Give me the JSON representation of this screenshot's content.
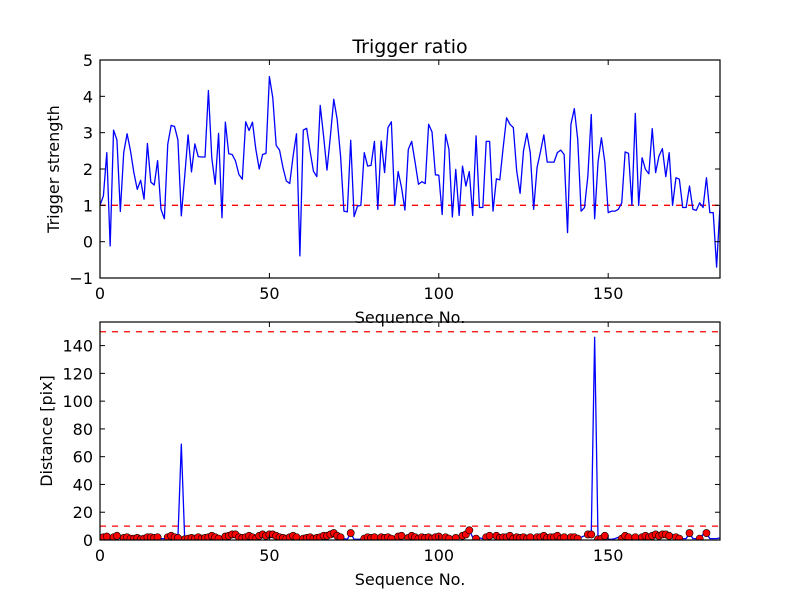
{
  "chart_data": [
    {
      "type": "line",
      "title": "Trigger ratio",
      "xlabel": "Sequence No.",
      "ylabel": "Trigger strength",
      "xlim": [
        0,
        183
      ],
      "ylim": [
        -1,
        5
      ],
      "xticks": [
        0,
        50,
        100,
        150
      ],
      "yticks": [
        -1,
        0,
        1,
        2,
        3,
        4,
        5
      ],
      "line_color": "#0000ff",
      "threshold": {
        "value": 1,
        "color": "#ff0000",
        "style": "dashed"
      },
      "y": [
        1.0,
        1.26,
        2.45,
        -0.12,
        3.07,
        2.8,
        0.83,
        2.45,
        2.97,
        2.5,
        1.9,
        1.44,
        1.69,
        1.17,
        2.7,
        1.64,
        1.56,
        2.23,
        0.89,
        0.63,
        2.68,
        3.2,
        3.17,
        2.8,
        0.71,
        1.8,
        2.94,
        1.92,
        2.69,
        2.34,
        2.33,
        2.33,
        4.16,
        2.3,
        1.58,
        2.98,
        0.66,
        3.29,
        2.42,
        2.4,
        2.22,
        1.85,
        1.72,
        3.3,
        3.06,
        3.29,
        2.54,
        2.0,
        2.4,
        2.43,
        4.54,
        3.96,
        2.65,
        2.52,
        2.04,
        1.67,
        1.6,
        2.36,
        2.97,
        -0.39,
        3.07,
        3.12,
        2.5,
        1.94,
        1.79,
        3.75,
        2.9,
        1.97,
        2.9,
        3.92,
        3.37,
        2.36,
        0.84,
        0.82,
        2.79,
        0.69,
        0.98,
        1.0,
        2.45,
        2.08,
        2.1,
        2.76,
        0.89,
        2.77,
        1.9,
        3.14,
        3.3,
        1.0,
        1.93,
        1.49,
        0.87,
        2.54,
        2.76,
        2.19,
        1.58,
        1.65,
        1.6,
        3.23,
        3.02,
        1.84,
        1.83,
        0.75,
        2.95,
        2.54,
        0.68,
        1.99,
        0.72,
        2.08,
        1.53,
        1.93,
        0.72,
        2.91,
        0.94,
        0.94,
        2.76,
        2.76,
        0.84,
        1.73,
        1.7,
        2.59,
        3.41,
        3.23,
        3.14,
        1.94,
        1.33,
        2.5,
        2.98,
        2.45,
        0.89,
        2.04,
        2.47,
        2.94,
        2.19,
        2.19,
        2.19,
        2.45,
        2.52,
        2.4,
        0.25,
        3.23,
        3.66,
        2.82,
        0.84,
        0.94,
        1.81,
        3.5,
        0.63,
        2.19,
        2.86,
        2.19,
        0.8,
        0.84,
        0.84,
        0.89,
        1.07,
        2.47,
        2.43,
        1.0,
        3.53,
        1.0,
        2.31,
        1.99,
        1.87,
        3.11,
        1.9,
        2.36,
        2.56,
        1.79,
        2.45,
        1.0,
        1.76,
        1.72,
        0.94,
        0.94,
        1.53,
        0.89,
        0.86,
        1.07,
        0.94,
        1.76,
        0.8,
        0.8,
        -0.7,
        0.98
      ]
    },
    {
      "type": "line",
      "title": "",
      "xlabel": "Sequence No.",
      "ylabel": "Distance [pix]",
      "xlim": [
        0,
        183
      ],
      "ylim": [
        0,
        157
      ],
      "xticks": [
        0,
        50,
        100,
        150
      ],
      "yticks": [
        0,
        20,
        40,
        60,
        80,
        100,
        120,
        140
      ],
      "line_color": "#0000ff",
      "marker_color": "#ff0000",
      "marker_rule": "marked where trigger strength > 1",
      "thresholds": [
        {
          "value": 10,
          "color": "#ff0000",
          "style": "dashed"
        },
        {
          "value": 150,
          "color": "#ff0000",
          "style": "dashed"
        }
      ],
      "y": [
        1.5,
        2,
        2.5,
        1,
        2,
        3,
        1,
        1.5,
        2,
        1,
        1,
        1.5,
        0.5,
        1,
        2,
        2,
        1.5,
        2,
        1,
        1,
        2,
        3,
        2,
        1.5,
        69,
        0.5,
        1,
        1.5,
        1,
        2,
        1,
        1.5,
        2,
        3,
        2,
        1,
        2,
        2.5,
        3,
        4,
        4,
        2,
        1.5,
        2,
        3,
        2,
        1,
        3,
        4,
        3,
        4,
        4,
        3,
        2,
        1.5,
        1,
        2,
        3,
        2,
        1.5,
        1,
        1.5,
        2,
        1,
        1.5,
        2,
        3,
        3,
        4,
        5,
        3,
        2,
        1,
        0.5,
        5,
        0.5,
        0.5,
        0.5,
        1,
        2,
        1.5,
        2,
        1,
        2,
        1.5,
        2,
        1,
        2,
        2.5,
        3,
        2,
        1.5,
        3,
        2,
        1,
        2,
        1.5,
        2,
        1,
        2,
        2.5,
        1.5,
        2,
        1,
        2,
        1.5,
        2,
        3,
        4,
        7,
        2,
        1,
        1.5,
        1,
        2,
        3,
        2,
        3,
        1.5,
        2,
        2,
        3,
        1,
        2,
        1.5,
        2,
        1,
        2,
        3,
        2,
        2,
        3,
        1.5,
        2,
        2,
        3,
        1,
        2,
        1.5,
        2,
        2,
        1,
        2,
        3,
        4,
        4,
        146,
        0.5,
        1,
        3,
        0.5,
        0.5,
        1,
        2,
        1,
        3,
        2,
        1,
        2,
        1,
        2,
        3,
        2,
        3,
        4,
        3,
        4,
        4,
        3,
        4,
        2,
        1,
        1,
        1,
        5,
        1,
        1,
        1,
        4,
        5,
        1,
        1,
        1,
        1.5
      ]
    }
  ]
}
